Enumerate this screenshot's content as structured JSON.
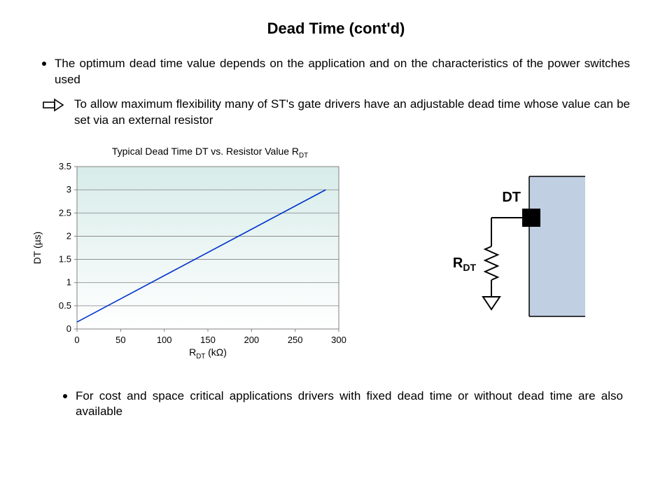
{
  "title": "Dead Time (cont'd)",
  "bullet1": "The optimum dead time value depends on the application and on the characteristics of the power switches used",
  "bullet2": "To allow maximum flexibility many of ST's gate drivers have an adjustable dead time whose value can be set via an external resistor",
  "bullet3": "For cost and space critical applications drivers with fixed dead time or without dead time are also available",
  "chart": {
    "type": "line",
    "title_prefix": "Typical Dead Time DT vs. Resistor Value R",
    "title_sub": "DT",
    "xlabel_prefix": "R",
    "xlabel_sub": "DT",
    "xlabel_suffix": " (kΩ)",
    "ylabel": "DT (µs)",
    "xlim": [
      0,
      300
    ],
    "ylim": [
      0,
      3.5
    ],
    "xticks": [
      0,
      50,
      100,
      150,
      200,
      250,
      300
    ],
    "yticks": [
      0,
      0.5,
      1,
      1.5,
      2,
      2.5,
      3,
      3.5
    ],
    "line_points": [
      [
        0,
        0.15
      ],
      [
        285,
        3.0
      ]
    ],
    "line_color": "#0033cc",
    "line_width": 1.6,
    "plot_bg_top": "#d7ece9",
    "plot_bg_bottom": "#ffffff",
    "grid_color": "#808080",
    "border_color": "#808080",
    "tick_font_size": 13,
    "axis_font_size": 14
  },
  "diagram": {
    "pin_label": "DT",
    "res_label_prefix": "R",
    "res_label_sub": "DT",
    "block_fill": "#c1cfe3",
    "pin_fill": "#000000",
    "stroke": "#000000",
    "label_font_size": 20,
    "label_font_weight": "bold"
  }
}
